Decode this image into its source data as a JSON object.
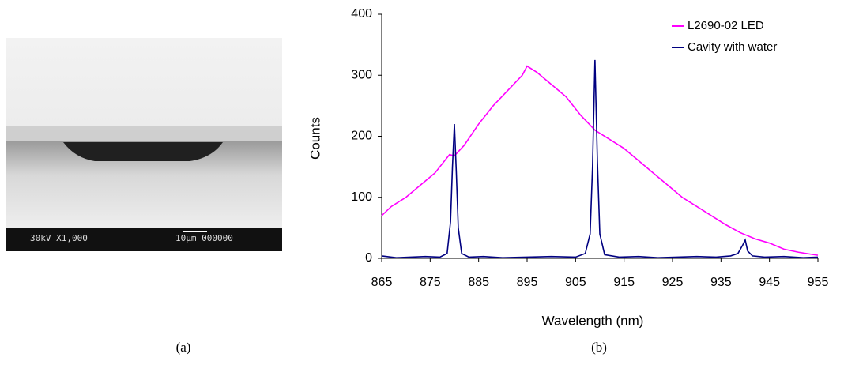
{
  "image": {
    "labels": [
      "30kV X1,000",
      "10µm 000000"
    ]
  },
  "captions": [
    "(a)",
    "(b)"
  ],
  "chart_data": {
    "type": "line",
    "xlabel": "Wavelength (nm)",
    "ylabel": "Counts",
    "xlim": [
      865,
      955
    ],
    "xticks": [
      865,
      875,
      885,
      895,
      905,
      915,
      925,
      935,
      945,
      955
    ],
    "ylim": [
      0,
      400
    ],
    "yticks": [
      0,
      100,
      200,
      300,
      400
    ],
    "legend": "upper right",
    "grid": false,
    "series": [
      {
        "name": "L2690-02 LED",
        "color": "#ff00ff",
        "x": [
          865,
          867,
          870,
          873,
          876,
          879,
          880,
          882,
          885,
          888,
          891,
          894,
          895,
          897,
          900,
          903,
          906,
          909,
          912,
          915,
          918,
          921,
          924,
          927,
          930,
          933,
          936,
          939,
          942,
          945,
          948,
          951,
          955
        ],
        "values": [
          70,
          85,
          100,
          120,
          140,
          170,
          168,
          185,
          220,
          250,
          275,
          300,
          315,
          305,
          285,
          265,
          235,
          210,
          195,
          180,
          160,
          140,
          120,
          100,
          85,
          70,
          55,
          42,
          32,
          25,
          15,
          10,
          5
        ]
      },
      {
        "name": "Cavity with water",
        "color": "#000080",
        "x": [
          865,
          868,
          871,
          874,
          877,
          878.5,
          879.2,
          879.6,
          880,
          880.4,
          880.8,
          881.5,
          883,
          886,
          890,
          895,
          900,
          905,
          907,
          908,
          908.5,
          909,
          909.5,
          910,
          911,
          914,
          918,
          922,
          926,
          930,
          934,
          937,
          938.5,
          939.5,
          940,
          940.5,
          941.5,
          944,
          948,
          952,
          955
        ],
        "values": [
          4,
          1,
          2,
          3,
          2,
          8,
          60,
          150,
          220,
          140,
          50,
          8,
          2,
          3,
          1,
          2,
          3,
          2,
          8,
          40,
          150,
          325,
          160,
          40,
          6,
          2,
          3,
          1,
          2,
          3,
          2,
          4,
          8,
          22,
          30,
          12,
          4,
          2,
          3,
          1,
          2
        ]
      }
    ]
  }
}
